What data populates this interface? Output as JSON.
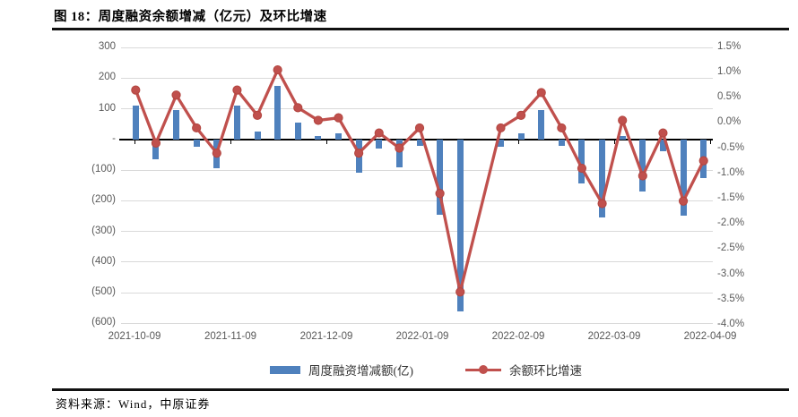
{
  "title": "图 18：周度融资余额增减（亿元）及环比增速",
  "source": "资料来源：Wind，中原证券",
  "colors": {
    "bar": "#4f81bd",
    "line": "#c0504d",
    "marker_edge": "#b2453f",
    "grid": "#d9d9d9",
    "axis_line": "#000000",
    "axis_text": "#595959"
  },
  "legend": {
    "bar_label": "周度融资增减额(亿)",
    "line_label": "余额环比增速"
  },
  "chart_data": {
    "type": "bar",
    "subtype": "combo-bar-line-dual-axis",
    "x_labels": [
      "2021-10-09",
      "2021-11-09",
      "2021-12-09",
      "2022-01-09",
      "2022-02-09",
      "2022-03-09",
      "2022-04-09"
    ],
    "x_cadence": "weekly",
    "left_axis": {
      "title": "周度融资增减额(亿)",
      "max": 300,
      "min": -600,
      "ticks": [
        {
          "label": "300",
          "value": 300
        },
        {
          "label": "200",
          "value": 200
        },
        {
          "label": "100",
          "value": 100
        },
        {
          "label": "-",
          "value": 0
        },
        {
          "label": "(100)",
          "value": -100
        },
        {
          "label": "(200)",
          "value": -200
        },
        {
          "label": "(300)",
          "value": -300
        },
        {
          "label": "(400)",
          "value": -400
        },
        {
          "label": "(500)",
          "value": -500
        },
        {
          "label": "(600)",
          "value": -600
        }
      ]
    },
    "right_axis": {
      "title": "余额环比增速",
      "max": 1.5,
      "min": -4.0,
      "ticks": [
        {
          "label": "1.5%",
          "value": 1.5
        },
        {
          "label": "1.0%",
          "value": 1.0
        },
        {
          "label": "0.5%",
          "value": 0.5
        },
        {
          "label": "0.0%",
          "value": 0.0
        },
        {
          "label": "-0.5%",
          "value": -0.5
        },
        {
          "label": "-1.0%",
          "value": -1.0
        },
        {
          "label": "-1.5%",
          "value": -1.5
        },
        {
          "label": "-2.0%",
          "value": -2.0
        },
        {
          "label": "-2.5%",
          "value": -2.5
        },
        {
          "label": "-3.0%",
          "value": -3.0
        },
        {
          "label": "-3.5%",
          "value": -3.5
        },
        {
          "label": "-4.0%",
          "value": -4.0
        }
      ]
    },
    "grid": "horizontal-left-axis",
    "legend_position": "bottom",
    "series": [
      {
        "name": "周度融资增减额(亿)",
        "type": "bar",
        "axis": "left",
        "values": [
          110,
          -65,
          95,
          -25,
          -95,
          110,
          25,
          175,
          55,
          10,
          20,
          -110,
          -30,
          -90,
          -20,
          -245,
          -560,
          null,
          -25,
          20,
          95,
          -20,
          -145,
          -255,
          10,
          -170,
          -40,
          -250,
          -125
        ]
      },
      {
        "name": "余额环比增速",
        "type": "line",
        "axis": "right",
        "values": [
          0.65,
          -0.4,
          0.55,
          -0.1,
          -0.6,
          0.65,
          0.15,
          1.05,
          0.3,
          0.05,
          0.1,
          -0.6,
          -0.2,
          -0.5,
          -0.1,
          -1.4,
          -3.35,
          null,
          -0.1,
          0.15,
          0.6,
          -0.1,
          -0.9,
          -1.6,
          0.05,
          -1.05,
          -0.2,
          -1.55,
          -0.75
        ]
      }
    ]
  }
}
